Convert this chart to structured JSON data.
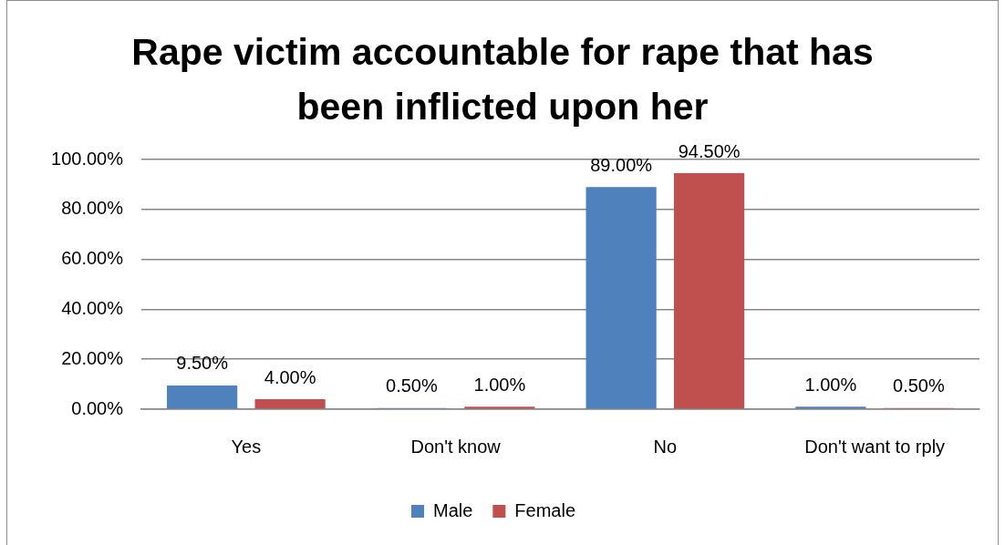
{
  "chart_data": {
    "type": "bar",
    "title": "Rape victim accountable for rape that has been inflicted upon her",
    "categories": [
      "Yes",
      "Don't know",
      "No",
      "Don't want to rply"
    ],
    "series": [
      {
        "name": "Male",
        "color": "#4f81bd",
        "values": [
          9.5,
          0.5,
          89,
          1
        ],
        "value_labels": [
          "9.50%",
          "0.50%",
          "89.00%",
          "1.00%"
        ]
      },
      {
        "name": "Female",
        "color": "#c0504d",
        "values": [
          4,
          1,
          94.5,
          0.5
        ],
        "value_labels": [
          "4.00%",
          "1.00%",
          "94.50%",
          "0.50%"
        ]
      }
    ],
    "ylim": [
      0,
      100
    ],
    "yticks": [
      {
        "value": 0,
        "label": "0.00%"
      },
      {
        "value": 20,
        "label": "20.00%"
      },
      {
        "value": 40,
        "label": "40.00%"
      },
      {
        "value": 60,
        "label": "60.00%"
      },
      {
        "value": 80,
        "label": "80.00%"
      },
      {
        "value": 100,
        "label": "100.00%"
      }
    ],
    "grid": "y",
    "legend": "bottom"
  }
}
